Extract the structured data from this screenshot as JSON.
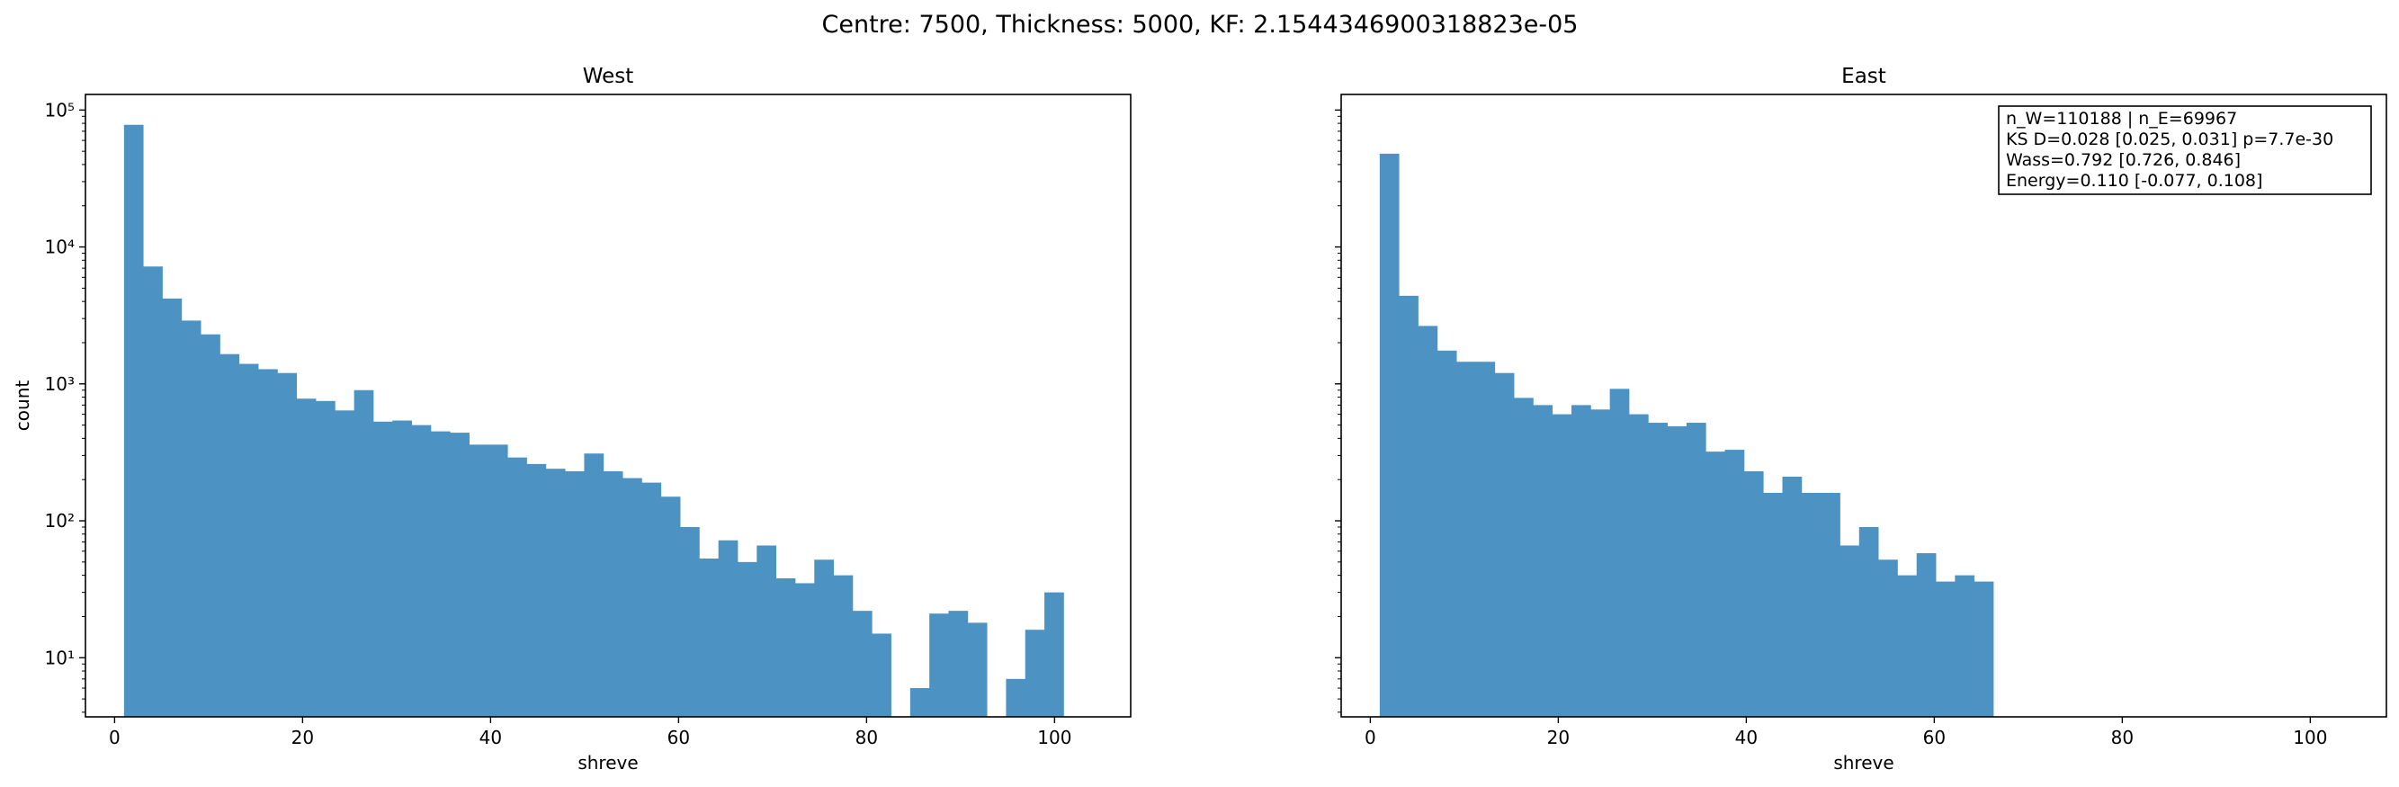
{
  "figure": {
    "suptitle": "Centre: 7500, Thickness: 5000, KF: 2.1544346900318823e-05"
  },
  "colors": {
    "bar": "#4c92c3",
    "axes": "#000000",
    "background": "#ffffff"
  },
  "chart_data": [
    {
      "type": "bar",
      "title": "West",
      "xlabel": "shreve",
      "ylabel": "count",
      "yscale": "log",
      "xlim": [
        -3.1,
        108.1
      ],
      "ylim": [
        3.7,
        130000
      ],
      "xticks": [
        0,
        20,
        40,
        60,
        80,
        100
      ],
      "xtick_labels": [
        "0",
        "20",
        "40",
        "60",
        "80",
        "100"
      ],
      "yticks": [
        10,
        100,
        1000,
        10000,
        100000
      ],
      "ytick_labels": [
        "10¹",
        "10²",
        "10³",
        "10⁴",
        "10⁵"
      ],
      "bin_width": 2.04,
      "bin_start": 1,
      "values": [
        78000,
        7200,
        4200,
        2900,
        2300,
        1650,
        1400,
        1280,
        1200,
        780,
        750,
        640,
        900,
        530,
        540,
        500,
        450,
        440,
        360,
        360,
        290,
        260,
        240,
        230,
        310,
        230,
        205,
        190,
        150,
        90,
        53,
        72,
        50,
        66,
        38,
        35,
        52,
        40,
        22,
        15,
        0,
        6,
        21,
        22,
        18,
        0,
        7,
        16,
        30
      ],
      "grid": false
    },
    {
      "type": "bar",
      "title": "East",
      "xlabel": "shreve",
      "ylabel": "",
      "yscale": "log",
      "xlim": [
        -3.1,
        108.1
      ],
      "ylim": [
        3.7,
        130000
      ],
      "xticks": [
        0,
        20,
        40,
        60,
        80,
        100
      ],
      "xtick_labels": [
        "0",
        "20",
        "40",
        "60",
        "80",
        "100"
      ],
      "bin_width": 2.04,
      "bin_start": 1,
      "values": [
        48000,
        4400,
        2650,
        1750,
        1450,
        1450,
        1200,
        790,
        700,
        600,
        700,
        650,
        920,
        600,
        520,
        490,
        520,
        320,
        330,
        230,
        160,
        210,
        160,
        160,
        66,
        90,
        52,
        40,
        58,
        36,
        40,
        36
      ],
      "grid": false,
      "annotation": {
        "lines": [
          "n_W=110188 | n_E=69967",
          "KS D=0.028 [0.025, 0.031]  p=7.7e-30",
          "Wass=0.792 [0.726, 0.846]",
          "Energy=0.110 [-0.077, 0.108]"
        ],
        "placement": "top-right"
      }
    }
  ]
}
